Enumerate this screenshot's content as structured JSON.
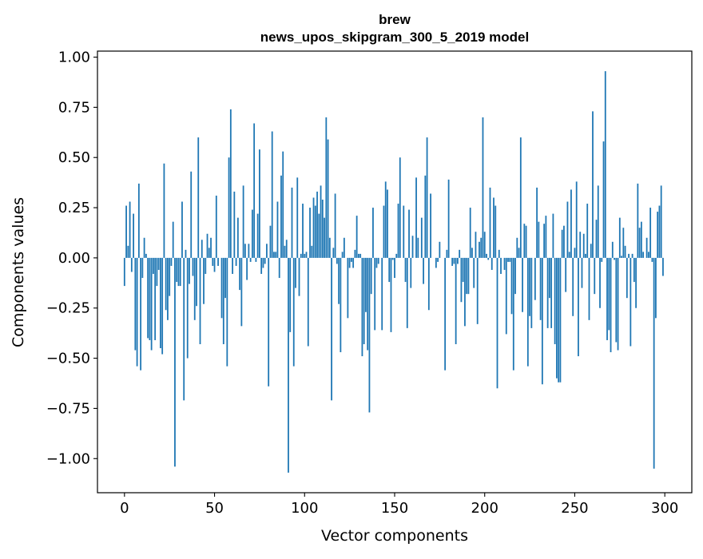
{
  "chart_data": {
    "type": "bar",
    "title": "brew",
    "subtitle": "news_upos_skipgram_300_5_2019 model",
    "xlabel": "Vector components",
    "ylabel": "Components values",
    "xlim": [
      -15,
      315
    ],
    "ylim": [
      -1.17,
      1.03
    ],
    "xticks": [
      0,
      50,
      100,
      150,
      200,
      250,
      300
    ],
    "xtick_labels": [
      "0",
      "50",
      "100",
      "150",
      "200",
      "250",
      "300"
    ],
    "yticks": [
      -1.0,
      -0.75,
      -0.5,
      -0.25,
      0.0,
      0.25,
      0.5,
      0.75,
      1.0
    ],
    "ytick_labels": [
      "−1.00",
      "−0.75",
      "−0.50",
      "−0.25",
      "0.00",
      "0.25",
      "0.50",
      "0.75",
      "1.00"
    ],
    "bar_color": "#1f77b4",
    "grid": false,
    "legend": false,
    "x": [
      0,
      1,
      2,
      3,
      4,
      5,
      6,
      7,
      8,
      9,
      10,
      11,
      12,
      13,
      14,
      15,
      16,
      17,
      18,
      19,
      20,
      21,
      22,
      23,
      24,
      25,
      26,
      27,
      28,
      29,
      30,
      31,
      32,
      33,
      34,
      35,
      36,
      37,
      38,
      39,
      40,
      41,
      42,
      43,
      44,
      45,
      46,
      47,
      48,
      49,
      50,
      51,
      52,
      53,
      54,
      55,
      56,
      57,
      58,
      59,
      60,
      61,
      62,
      63,
      64,
      65,
      66,
      67,
      68,
      69,
      70,
      71,
      72,
      73,
      74,
      75,
      76,
      77,
      78,
      79,
      80,
      81,
      82,
      83,
      84,
      85,
      86,
      87,
      88,
      89,
      90,
      91,
      92,
      93,
      94,
      95,
      96,
      97,
      98,
      99,
      100,
      101,
      102,
      103,
      104,
      105,
      106,
      107,
      108,
      109,
      110,
      111,
      112,
      113,
      114,
      115,
      116,
      117,
      118,
      119,
      120,
      121,
      122,
      123,
      124,
      125,
      126,
      127,
      128,
      129,
      130,
      131,
      132,
      133,
      134,
      135,
      136,
      137,
      138,
      139,
      140,
      141,
      142,
      143,
      144,
      145,
      146,
      147,
      148,
      149,
      150,
      151,
      152,
      153,
      154,
      155,
      156,
      157,
      158,
      159,
      160,
      161,
      162,
      163,
      164,
      165,
      166,
      167,
      168,
      169,
      170,
      171,
      172,
      173,
      174,
      175,
      176,
      177,
      178,
      179,
      180,
      181,
      182,
      183,
      184,
      185,
      186,
      187,
      188,
      189,
      190,
      191,
      192,
      193,
      194,
      195,
      196,
      197,
      198,
      199,
      200,
      201,
      202,
      203,
      204,
      205,
      206,
      207,
      208,
      209,
      210,
      211,
      212,
      213,
      214,
      215,
      216,
      217,
      218,
      219,
      220,
      221,
      222,
      223,
      224,
      225,
      226,
      227,
      228,
      229,
      230,
      231,
      232,
      233,
      234,
      235,
      236,
      237,
      238,
      239,
      240,
      241,
      242,
      243,
      244,
      245,
      246,
      247,
      248,
      249,
      250,
      251,
      252,
      253,
      254,
      255,
      256,
      257,
      258,
      259,
      260,
      261,
      262,
      263,
      264,
      265,
      266,
      267,
      268,
      269,
      270,
      271,
      272,
      273,
      274,
      275,
      276,
      277,
      278,
      279,
      280,
      281,
      282,
      283,
      284,
      285,
      286,
      287,
      288,
      289,
      290,
      291,
      292,
      293,
      294,
      295,
      296,
      297,
      298,
      299
    ],
    "values": [
      -0.14,
      0.26,
      0.06,
      0.28,
      -0.07,
      0.22,
      -0.46,
      -0.54,
      0.37,
      -0.56,
      -0.1,
      0.1,
      0.02,
      -0.4,
      -0.41,
      -0.46,
      -0.08,
      -0.41,
      -0.14,
      -0.06,
      -0.45,
      -0.48,
      0.47,
      -0.26,
      -0.31,
      -0.19,
      -0.04,
      0.18,
      -1.04,
      -0.12,
      -0.14,
      -0.14,
      0.28,
      -0.71,
      0.04,
      -0.5,
      -0.13,
      0.43,
      -0.09,
      -0.31,
      -0.24,
      0.6,
      -0.43,
      0.09,
      -0.23,
      -0.08,
      0.12,
      0.05,
      0.1,
      -0.04,
      -0.07,
      0.31,
      -0.04,
      0.0,
      -0.3,
      -0.43,
      -0.2,
      -0.54,
      0.5,
      0.74,
      -0.08,
      0.33,
      -0.04,
      0.2,
      -0.16,
      -0.34,
      0.36,
      0.07,
      -0.11,
      0.07,
      -0.02,
      0.24,
      0.67,
      -0.02,
      0.22,
      0.54,
      -0.08,
      -0.05,
      -0.03,
      0.07,
      -0.64,
      0.16,
      0.63,
      0.03,
      0.03,
      0.28,
      -0.1,
      0.41,
      0.53,
      0.06,
      0.09,
      -1.07,
      -0.37,
      0.35,
      -0.54,
      -0.15,
      0.4,
      -0.19,
      0.02,
      0.27,
      0.02,
      0.03,
      -0.44,
      0.25,
      0.06,
      0.3,
      0.26,
      0.33,
      0.22,
      0.36,
      0.29,
      0.2,
      0.7,
      0.59,
      0.1,
      -0.71,
      0.05,
      0.32,
      -0.03,
      -0.23,
      -0.47,
      0.03,
      0.1,
      0.0,
      -0.3,
      -0.05,
      -0.02,
      -0.05,
      0.04,
      0.21,
      0.02,
      0.02,
      -0.49,
      -0.43,
      -0.27,
      -0.46,
      -0.77,
      -0.18,
      0.25,
      -0.36,
      -0.05,
      -0.03,
      0.0,
      -0.36,
      0.26,
      0.38,
      0.34,
      -0.12,
      -0.37,
      -0.01,
      -0.1,
      0.02,
      0.27,
      0.5,
      0.0,
      0.26,
      -0.12,
      -0.35,
      0.24,
      -0.15,
      0.11,
      0.0,
      0.4,
      0.1,
      0.0,
      0.2,
      -0.13,
      0.41,
      0.6,
      -0.26,
      0.32,
      0.0,
      0.0,
      -0.05,
      -0.02,
      0.08,
      0.0,
      0.0,
      -0.56,
      0.04,
      0.39,
      0.0,
      -0.04,
      -0.03,
      -0.43,
      -0.03,
      0.04,
      -0.22,
      -0.12,
      -0.34,
      -0.18,
      -0.18,
      0.25,
      0.05,
      -0.15,
      0.13,
      -0.33,
      0.08,
      0.1,
      0.7,
      0.13,
      0.02,
      -0.01,
      0.35,
      -0.06,
      0.3,
      0.26,
      -0.65,
      0.04,
      -0.08,
      0.0,
      -0.06,
      -0.38,
      -0.02,
      -0.02,
      -0.28,
      -0.56,
      -0.18,
      0.1,
      0.05,
      0.6,
      -0.27,
      0.17,
      0.16,
      -0.54,
      -0.29,
      -0.35,
      0.0,
      -0.21,
      0.35,
      0.18,
      -0.31,
      -0.63,
      0.17,
      0.21,
      -0.35,
      -0.2,
      -0.35,
      0.22,
      -0.43,
      -0.6,
      -0.62,
      -0.62,
      0.14,
      0.16,
      -0.17,
      0.28,
      0.03,
      0.34,
      -0.29,
      0.05,
      0.38,
      -0.49,
      0.13,
      -0.15,
      0.12,
      0.02,
      0.27,
      -0.31,
      0.07,
      0.73,
      -0.18,
      0.19,
      0.36,
      -0.25,
      -0.02,
      0.58,
      0.93,
      -0.41,
      -0.36,
      -0.47,
      0.08,
      -0.01,
      -0.42,
      -0.46,
      0.2,
      0.01,
      0.15,
      0.06,
      -0.2,
      0.02,
      -0.44,
      0.02,
      -0.12,
      -0.25,
      0.37,
      0.15,
      0.18,
      0.03,
      0.0,
      0.1,
      0.03,
      0.25,
      -0.02,
      -1.05,
      -0.3,
      0.23,
      0.26,
      0.36,
      -0.09
    ]
  }
}
